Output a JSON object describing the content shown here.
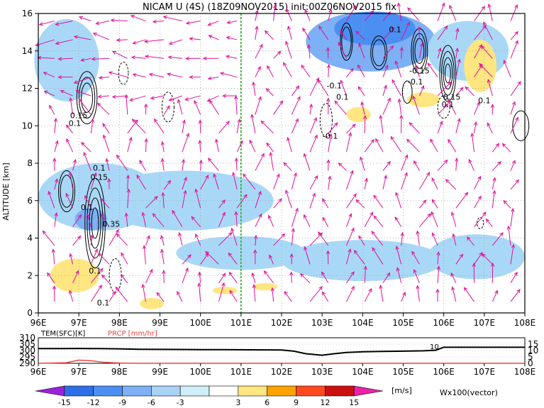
{
  "chart_data": [
    {
      "type": "heatmap",
      "title": "NICAM U (4S) (18Z09NOV2015) init:00Z06NOV2015 fix",
      "ylabel": "ALTITUDE [km]",
      "xlabel": "",
      "x_ticks": [
        "96E",
        "97E",
        "98E",
        "99E",
        "100E",
        "101E",
        "102E",
        "103E",
        "104E",
        "105E",
        "106E",
        "107E",
        "108E"
      ],
      "y_ticks": [
        "0",
        "2",
        "4",
        "6",
        "8",
        "10",
        "12",
        "14",
        "16"
      ],
      "xlim": [
        96,
        108
      ],
      "ylim": [
        0,
        16
      ],
      "grid": true,
      "marker_line": {
        "x": 101,
        "color": "#22aa22",
        "style": "dashed"
      },
      "shading_levels": [
        -15,
        -12,
        -9,
        -6,
        -3,
        3,
        6,
        9,
        12,
        15
      ],
      "shading_colors": [
        "#9a22dd",
        "#2e6fe6",
        "#4c8ff2",
        "#7db0f5",
        "#a9d2f7",
        "#cfeefa",
        "#ffffff",
        "#ffe680",
        "#ffa200",
        "#ff4a20",
        "#cc1010",
        "#ee22aa"
      ],
      "blue_regions": [
        {
          "x": 96.7,
          "y": 13.5,
          "rx": 0.8,
          "ry": 2.2,
          "level": -3
        },
        {
          "x": 97.5,
          "y": 6.2,
          "rx": 1.5,
          "ry": 1.8,
          "level": -3
        },
        {
          "x": 99.6,
          "y": 6.0,
          "rx": 2.2,
          "ry": 1.6,
          "level": -3
        },
        {
          "x": 101.0,
          "y": 3.2,
          "rx": 1.6,
          "ry": 0.9,
          "level": -3
        },
        {
          "x": 104.0,
          "y": 2.8,
          "rx": 2.0,
          "ry": 1.1,
          "level": -3
        },
        {
          "x": 106.8,
          "y": 3.0,
          "rx": 1.2,
          "ry": 1.2,
          "level": -3
        },
        {
          "x": 104.2,
          "y": 14.5,
          "rx": 1.6,
          "ry": 1.6,
          "level": -6
        },
        {
          "x": 104.3,
          "y": 15.2,
          "rx": 1.0,
          "ry": 0.9,
          "level": -9
        },
        {
          "x": 106.6,
          "y": 14.0,
          "rx": 1.0,
          "ry": 1.6,
          "level": -3
        },
        {
          "x": 97.3,
          "y": 5.0,
          "rx": 0.4,
          "ry": 0.6,
          "level": -6
        }
      ],
      "yellow_regions": [
        {
          "x": 106.9,
          "y": 13.2,
          "rx": 0.4,
          "ry": 1.4,
          "level": 3
        },
        {
          "x": 105.5,
          "y": 11.4,
          "rx": 0.4,
          "ry": 0.4,
          "level": 3
        },
        {
          "x": 103.9,
          "y": 10.6,
          "rx": 0.3,
          "ry": 0.4,
          "level": 3
        },
        {
          "x": 96.9,
          "y": 2.0,
          "rx": 0.6,
          "ry": 0.9,
          "level": 3
        },
        {
          "x": 98.8,
          "y": 0.5,
          "rx": 0.3,
          "ry": 0.3,
          "level": 3
        },
        {
          "x": 100.6,
          "y": 1.2,
          "rx": 0.3,
          "ry": 0.2,
          "level": 3
        },
        {
          "x": 101.6,
          "y": 1.4,
          "rx": 0.3,
          "ry": 0.2,
          "level": 3
        }
      ],
      "contour_labels": [
        {
          "x": 104.8,
          "y": 15.0,
          "text": "0.1"
        },
        {
          "x": 105.4,
          "y": 12.8,
          "text": "-0.15"
        },
        {
          "x": 105.3,
          "y": 12.2,
          "text": "-0.1"
        },
        {
          "x": 106.2,
          "y": 11.4,
          "text": "0.15"
        },
        {
          "x": 106.1,
          "y": 11.0,
          "text": "0.1"
        },
        {
          "x": 107.0,
          "y": 11.2,
          "text": "0.1"
        },
        {
          "x": 103.3,
          "y": 12.0,
          "text": "-0.1"
        },
        {
          "x": 103.5,
          "y": 11.4,
          "text": "0.1"
        },
        {
          "x": 103.2,
          "y": 9.3,
          "text": "-0.1"
        },
        {
          "x": 97.0,
          "y": 10.4,
          "text": "0.15"
        },
        {
          "x": 96.9,
          "y": 10.0,
          "text": "0.1"
        },
        {
          "x": 97.5,
          "y": 7.6,
          "text": "0.1"
        },
        {
          "x": 97.5,
          "y": 7.1,
          "text": "0.15"
        },
        {
          "x": 97.2,
          "y": 5.5,
          "text": "0.1"
        },
        {
          "x": 97.8,
          "y": 4.6,
          "text": "0.35"
        },
        {
          "x": 97.4,
          "y": 2.1,
          "text": "0.1"
        },
        {
          "x": 97.6,
          "y": 0.4,
          "text": "0.1"
        }
      ]
    },
    {
      "type": "line",
      "series": [
        {
          "name": "TEM(SFC)[K]",
          "color": "#000000",
          "x": [
            96,
            96.5,
            97,
            97.5,
            98,
            98.5,
            99,
            99.5,
            100,
            100.5,
            101,
            101.5,
            102,
            102.3,
            102.6,
            103,
            103.3,
            103.6,
            104,
            104.5,
            105,
            105.5,
            105.8,
            105.95,
            106,
            106.5,
            107,
            107.5,
            108
          ],
          "y": [
            301.5,
            301.5,
            301.6,
            301.5,
            301.3,
            301.0,
            300.9,
            300.8,
            300.7,
            300.7,
            300.6,
            300.5,
            300.4,
            299.5,
            297.5,
            296.3,
            297.5,
            298.5,
            299.0,
            299.3,
            299.5,
            299.8,
            300.2,
            302.0,
            302.6,
            302.6,
            302.6,
            302.6,
            302.6
          ]
        },
        {
          "name": "PRCP [mm/hr]",
          "color": "#ee4444",
          "x": [
            96,
            96.7,
            97.0,
            97.3,
            97.6,
            98.0,
            98.5,
            108
          ],
          "y": [
            0,
            0.5,
            2.5,
            2.0,
            0.8,
            0.2,
            0,
            0
          ]
        }
      ],
      "left_ticks": [
        "290",
        "295",
        "300",
        "305",
        "310"
      ],
      "right_ticks": [
        "0",
        "5",
        "10",
        "15"
      ],
      "annotation": "10",
      "x_ticks": [
        "96E",
        "97E",
        "98E",
        "99E",
        "100E",
        "101E",
        "102E",
        "103E",
        "104E",
        "105E",
        "106E",
        "107E",
        "108E"
      ]
    }
  ],
  "colorbar": {
    "labels": [
      "-15",
      "-12",
      "-9",
      "-6",
      "-3",
      "3",
      "6",
      "9",
      "12",
      "15"
    ],
    "unit": "[m/s]",
    "vector_note": "Wx100(vector)"
  }
}
